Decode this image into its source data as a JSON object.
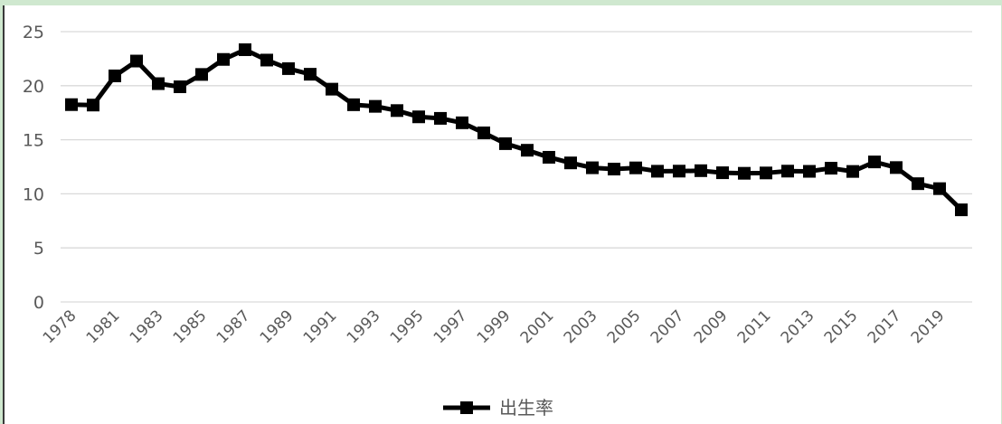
{
  "chart_data": {
    "type": "line",
    "x": [
      1978,
      1980,
      1981,
      1982,
      1983,
      1984,
      1985,
      1986,
      1987,
      1988,
      1989,
      1990,
      1991,
      1992,
      1993,
      1994,
      1995,
      1996,
      1997,
      1998,
      1999,
      2000,
      2001,
      2002,
      2003,
      2004,
      2005,
      2006,
      2007,
      2008,
      2009,
      2010,
      2011,
      2012,
      2013,
      2014,
      2015,
      2016,
      2017,
      2018,
      2019,
      2020
    ],
    "x_tick_labels": [
      "1978",
      "1981",
      "1983",
      "1985",
      "1987",
      "1989",
      "1991",
      "1993",
      "1995",
      "1997",
      "1999",
      "2001",
      "2003",
      "2005",
      "2007",
      "2009",
      "2011",
      "2013",
      "2015",
      "2017",
      "2019"
    ],
    "series": [
      {
        "name": "出生率",
        "color": "#000000",
        "marker": "square",
        "values": [
          18.25,
          18.21,
          20.91,
          22.28,
          20.19,
          19.9,
          21.04,
          22.43,
          23.33,
          22.37,
          21.58,
          21.06,
          19.68,
          18.24,
          18.09,
          17.7,
          17.12,
          16.98,
          16.57,
          15.64,
          14.64,
          14.03,
          13.38,
          12.86,
          12.41,
          12.29,
          12.4,
          12.09,
          12.1,
          12.14,
          11.95,
          11.9,
          11.93,
          12.1,
          12.08,
          12.37,
          12.07,
          12.95,
          12.43,
          10.94,
          10.48,
          8.52
        ]
      }
    ],
    "ylim": [
      0,
      25
    ],
    "yticks": [
      0,
      5,
      10,
      15,
      20,
      25
    ],
    "grid": true,
    "legend": "bottom-center",
    "title": "",
    "xlabel": "",
    "ylabel": ""
  }
}
